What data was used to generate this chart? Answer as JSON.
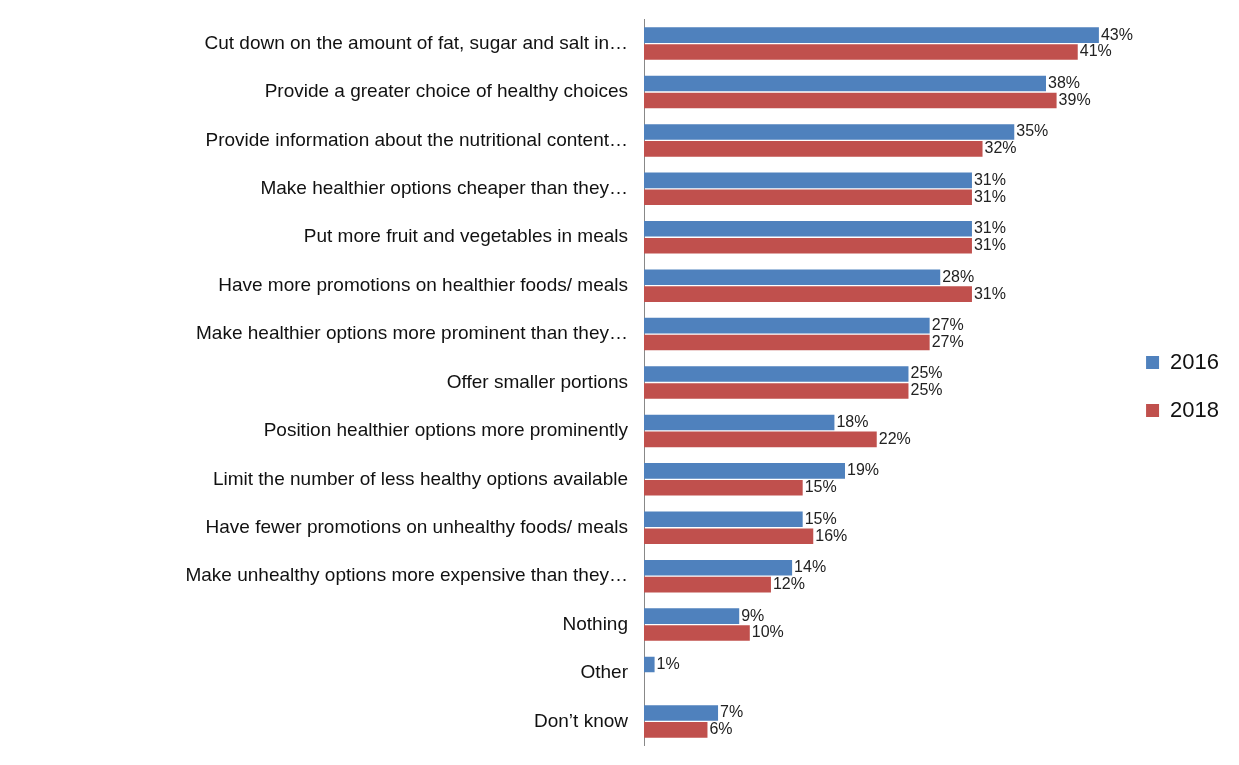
{
  "chart_data": {
    "type": "bar",
    "orientation": "horizontal",
    "legend": "right",
    "categories": [
      "Cut down on the amount of fat, sugar and salt in…",
      "Provide a greater choice of healthy choices",
      "Provide information about the nutritional content…",
      "Make healthier options cheaper than they…",
      "Put more fruit and vegetables in meals",
      "Have more promotions on healthier foods/ meals",
      "Make healthier options more prominent than they…",
      "Offer smaller portions",
      "Position healthier options more prominently",
      "Limit the number of less healthy options available",
      "Have fewer promotions on unhealthy foods/ meals",
      "Make unhealthy options more expensive than they…",
      "Nothing",
      "Other",
      "Don’t know"
    ],
    "series": [
      {
        "name": "2016",
        "color": "#4f81bd",
        "values": [
          43,
          38,
          35,
          31,
          31,
          28,
          27,
          25,
          18,
          19,
          15,
          14,
          9,
          1,
          7
        ],
        "value_labels": [
          "43%",
          "38%",
          "35%",
          "31%",
          "31%",
          "28%",
          "27%",
          "25%",
          "18%",
          "19%",
          "15%",
          "14%",
          "9%",
          "1%",
          "7%"
        ]
      },
      {
        "name": "2018",
        "color": "#c0504d",
        "values": [
          41,
          39,
          32,
          31,
          31,
          31,
          27,
          25,
          22,
          15,
          16,
          12,
          10,
          null,
          6
        ],
        "value_labels": [
          "41%",
          "39%",
          "32%",
          "31%",
          "31%",
          "31%",
          "27%",
          "25%",
          "22%",
          "15%",
          "16%",
          "12%",
          "10%",
          null,
          "6%"
        ]
      }
    ]
  }
}
